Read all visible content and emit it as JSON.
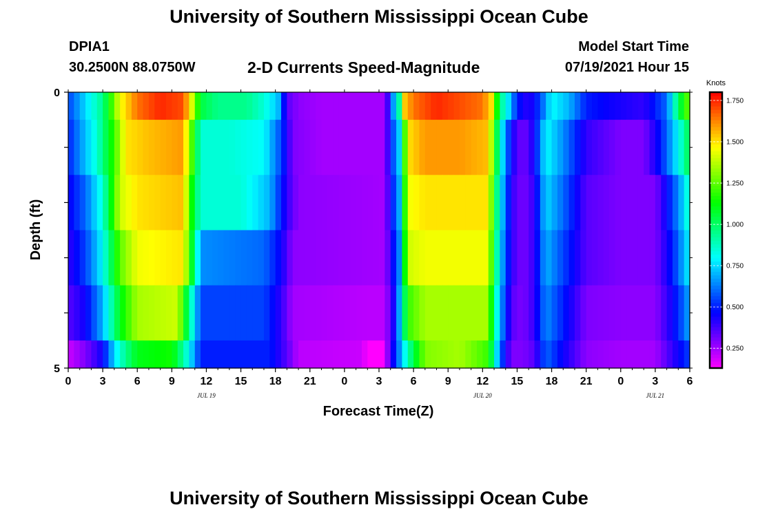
{
  "page": {
    "title_top": "University of Southern Mississippi Ocean Cube",
    "title_bottom": "University of Southern Mississippi Ocean Cube",
    "station_id": "DPIA1",
    "station_coords": "30.2500N  88.0750W",
    "plot_title": "2-D Currents Speed-Magnitude",
    "model_start_label": "Model Start Time",
    "model_start_value": "07/19/2021 Hour 15"
  },
  "chart_data": {
    "type": "heatmap",
    "title": "2-D Currents Speed-Magnitude",
    "xlabel": "Forecast Time(Z)",
    "ylabel": "Depth (ft)",
    "ylim": [
      0,
      5
    ],
    "xlim": [
      0,
      54
    ],
    "x_ticks": [
      {
        "hour": 0,
        "label": "0"
      },
      {
        "hour": 3,
        "label": "3"
      },
      {
        "hour": 6,
        "label": "6"
      },
      {
        "hour": 9,
        "label": "9"
      },
      {
        "hour": 12,
        "label": "12"
      },
      {
        "hour": 15,
        "label": "15"
      },
      {
        "hour": 18,
        "label": "18"
      },
      {
        "hour": 21,
        "label": "21"
      },
      {
        "hour": 24,
        "label": "0"
      },
      {
        "hour": 27,
        "label": "3"
      },
      {
        "hour": 30,
        "label": "6"
      },
      {
        "hour": 33,
        "label": "9"
      },
      {
        "hour": 36,
        "label": "12"
      },
      {
        "hour": 39,
        "label": "15"
      },
      {
        "hour": 42,
        "label": "18"
      },
      {
        "hour": 45,
        "label": "21"
      },
      {
        "hour": 48,
        "label": "0"
      },
      {
        "hour": 51,
        "label": "3"
      },
      {
        "hour": 54,
        "label": "6"
      }
    ],
    "date_labels": [
      {
        "hour": 12,
        "label": "JUL 19"
      },
      {
        "hour": 36,
        "label": "JUL 20"
      },
      {
        "hour": 51,
        "label": "JUL 21"
      }
    ],
    "y_tick_labels": [
      {
        "depth": 0,
        "label": "0"
      },
      {
        "depth": 5,
        "label": "5"
      }
    ],
    "colorbar": {
      "unit": "Knots",
      "min": 0.13,
      "max": 1.8,
      "tick_values": [
        0.25,
        0.5,
        0.75,
        1.0,
        1.25,
        1.5,
        1.75
      ],
      "tick_labels": [
        "0.250",
        "0.500",
        "0.750",
        "1.000",
        "1.250",
        "1.500",
        "1.750"
      ]
    },
    "depth_layers": [
      {
        "depth_range": [
          0,
          0.5
        ],
        "keyframes": [
          [
            0,
            0.55
          ],
          [
            1.5,
            0.75
          ],
          [
            3,
            0.95
          ],
          [
            4.5,
            1.45
          ],
          [
            6,
            1.65
          ],
          [
            8,
            1.75
          ],
          [
            10,
            1.7
          ],
          [
            10.8,
            1.4
          ],
          [
            11.5,
            1.05
          ],
          [
            13,
            0.95
          ],
          [
            15.5,
            0.95
          ],
          [
            17,
            0.85
          ],
          [
            18.3,
            0.7
          ],
          [
            19,
            0.35
          ],
          [
            20,
            0.28
          ],
          [
            22,
            0.25
          ],
          [
            26,
            0.25
          ],
          [
            27.6,
            0.25
          ],
          [
            28,
            0.6
          ],
          [
            28.7,
            0.8
          ],
          [
            29,
            1.5
          ],
          [
            30,
            1.65
          ],
          [
            32,
            1.75
          ],
          [
            34,
            1.7
          ],
          [
            36,
            1.65
          ],
          [
            36.8,
            1.5
          ],
          [
            37.5,
            0.95
          ],
          [
            38,
            0.85
          ],
          [
            39,
            0.5
          ],
          [
            40,
            0.4
          ],
          [
            41,
            0.55
          ],
          [
            42,
            0.8
          ],
          [
            43.5,
            0.7
          ],
          [
            45,
            0.5
          ],
          [
            47,
            0.45
          ],
          [
            50,
            0.4
          ],
          [
            52,
            0.6
          ],
          [
            53,
            1.0
          ],
          [
            54,
            1.3
          ]
        ]
      },
      {
        "depth_range": [
          0.5,
          1.5
        ],
        "keyframes": [
          [
            0,
            0.5
          ],
          [
            1,
            0.65
          ],
          [
            2.5,
            0.85
          ],
          [
            4,
            1.2
          ],
          [
            5,
            1.5
          ],
          [
            7,
            1.55
          ],
          [
            10,
            1.6
          ],
          [
            10.8,
            1.2
          ],
          [
            11.5,
            0.85
          ],
          [
            14,
            0.85
          ],
          [
            17,
            0.8
          ],
          [
            18.5,
            0.55
          ],
          [
            19.5,
            0.3
          ],
          [
            22,
            0.25
          ],
          [
            27.5,
            0.25
          ],
          [
            28,
            0.5
          ],
          [
            28.8,
            0.75
          ],
          [
            29.5,
            1.5
          ],
          [
            31,
            1.6
          ],
          [
            34,
            1.6
          ],
          [
            36.5,
            1.55
          ],
          [
            37,
            1.2
          ],
          [
            37.5,
            0.85
          ],
          [
            38.5,
            0.45
          ],
          [
            39.5,
            0.3
          ],
          [
            40.5,
            0.45
          ],
          [
            41.5,
            0.8
          ],
          [
            43,
            0.65
          ],
          [
            45,
            0.4
          ],
          [
            48,
            0.3
          ],
          [
            50,
            0.3
          ],
          [
            51.5,
            0.5
          ],
          [
            53,
            0.8
          ],
          [
            54,
            1.05
          ]
        ]
      },
      {
        "depth_range": [
          1.5,
          2.5
        ],
        "keyframes": [
          [
            0,
            0.45
          ],
          [
            1.5,
            0.6
          ],
          [
            3,
            0.85
          ],
          [
            4.5,
            1.4
          ],
          [
            6,
            1.5
          ],
          [
            10,
            1.55
          ],
          [
            10.8,
            1.1
          ],
          [
            11.5,
            0.85
          ],
          [
            15,
            0.85
          ],
          [
            17.5,
            0.7
          ],
          [
            19,
            0.4
          ],
          [
            20,
            0.28
          ],
          [
            27.5,
            0.25
          ],
          [
            28,
            0.45
          ],
          [
            28.8,
            0.7
          ],
          [
            29.5,
            1.45
          ],
          [
            31,
            1.5
          ],
          [
            36.5,
            1.5
          ],
          [
            37,
            1.1
          ],
          [
            37.5,
            0.8
          ],
          [
            38.5,
            0.4
          ],
          [
            39.5,
            0.3
          ],
          [
            40.5,
            0.4
          ],
          [
            41.5,
            0.75
          ],
          [
            43,
            0.6
          ],
          [
            45,
            0.35
          ],
          [
            48,
            0.3
          ],
          [
            51,
            0.3
          ],
          [
            52.5,
            0.55
          ],
          [
            53.5,
            0.75
          ],
          [
            54,
            0.9
          ]
        ]
      },
      {
        "depth_range": [
          2.5,
          3.5
        ],
        "keyframes": [
          [
            0,
            0.4
          ],
          [
            1.5,
            0.55
          ],
          [
            3,
            0.8
          ],
          [
            4.5,
            1.25
          ],
          [
            6,
            1.45
          ],
          [
            10,
            1.5
          ],
          [
            10.8,
            1.05
          ],
          [
            11.5,
            0.65
          ],
          [
            17,
            0.6
          ],
          [
            18.5,
            0.45
          ],
          [
            19.5,
            0.28
          ],
          [
            27.5,
            0.25
          ],
          [
            28,
            0.4
          ],
          [
            28.8,
            0.65
          ],
          [
            29.5,
            1.4
          ],
          [
            31,
            1.45
          ],
          [
            36.5,
            1.45
          ],
          [
            37,
            1.05
          ],
          [
            37.5,
            0.75
          ],
          [
            38.5,
            0.4
          ],
          [
            39.5,
            0.3
          ],
          [
            40.5,
            0.4
          ],
          [
            41.5,
            0.7
          ],
          [
            43,
            0.55
          ],
          [
            45,
            0.35
          ],
          [
            48,
            0.3
          ],
          [
            51,
            0.3
          ],
          [
            52.5,
            0.5
          ],
          [
            53.5,
            0.7
          ],
          [
            54,
            0.8
          ]
        ]
      },
      {
        "depth_range": [
          3.5,
          4.5
        ],
        "keyframes": [
          [
            0,
            0.35
          ],
          [
            1.5,
            0.45
          ],
          [
            3,
            0.7
          ],
          [
            4.5,
            1.1
          ],
          [
            6,
            1.35
          ],
          [
            9.5,
            1.4
          ],
          [
            10.5,
            0.95
          ],
          [
            11.5,
            0.55
          ],
          [
            17,
            0.55
          ],
          [
            18.5,
            0.4
          ],
          [
            19.5,
            0.25
          ],
          [
            26,
            0.22
          ],
          [
            27.5,
            0.22
          ],
          [
            28.5,
            0.5
          ],
          [
            29.5,
            1.2
          ],
          [
            31,
            1.35
          ],
          [
            36.5,
            1.35
          ],
          [
            37,
            0.95
          ],
          [
            37.5,
            0.7
          ],
          [
            38.5,
            0.35
          ],
          [
            39.5,
            0.3
          ],
          [
            40.5,
            0.4
          ],
          [
            41.5,
            0.65
          ],
          [
            43,
            0.5
          ],
          [
            45,
            0.3
          ],
          [
            48,
            0.28
          ],
          [
            51,
            0.28
          ],
          [
            52.5,
            0.45
          ],
          [
            53.5,
            0.6
          ],
          [
            54,
            0.7
          ]
        ]
      },
      {
        "depth_range": [
          4.5,
          5
        ],
        "keyframes": [
          [
            0,
            0.2
          ],
          [
            1.5,
            0.3
          ],
          [
            3,
            0.45
          ],
          [
            4,
            0.75
          ],
          [
            5,
            0.95
          ],
          [
            6,
            1.1
          ],
          [
            9,
            1.15
          ],
          [
            10.5,
            0.8
          ],
          [
            11.5,
            0.5
          ],
          [
            17.5,
            0.5
          ],
          [
            19,
            0.35
          ],
          [
            20,
            0.22
          ],
          [
            25.5,
            0.2
          ],
          [
            26,
            0.13
          ],
          [
            27.4,
            0.13
          ],
          [
            27.8,
            0.3
          ],
          [
            28.5,
            0.55
          ],
          [
            29.5,
            0.9
          ],
          [
            31,
            1.3
          ],
          [
            34,
            1.35
          ],
          [
            36.5,
            1.2
          ],
          [
            37,
            0.9
          ],
          [
            37.5,
            0.6
          ],
          [
            38.5,
            0.3
          ],
          [
            39.5,
            0.3
          ],
          [
            40.5,
            0.35
          ],
          [
            41.5,
            0.6
          ],
          [
            43,
            0.45
          ],
          [
            45,
            0.28
          ],
          [
            48,
            0.25
          ],
          [
            51,
            0.25
          ],
          [
            52.5,
            0.4
          ],
          [
            53.5,
            0.5
          ],
          [
            54,
            0.55
          ]
        ]
      }
    ]
  }
}
